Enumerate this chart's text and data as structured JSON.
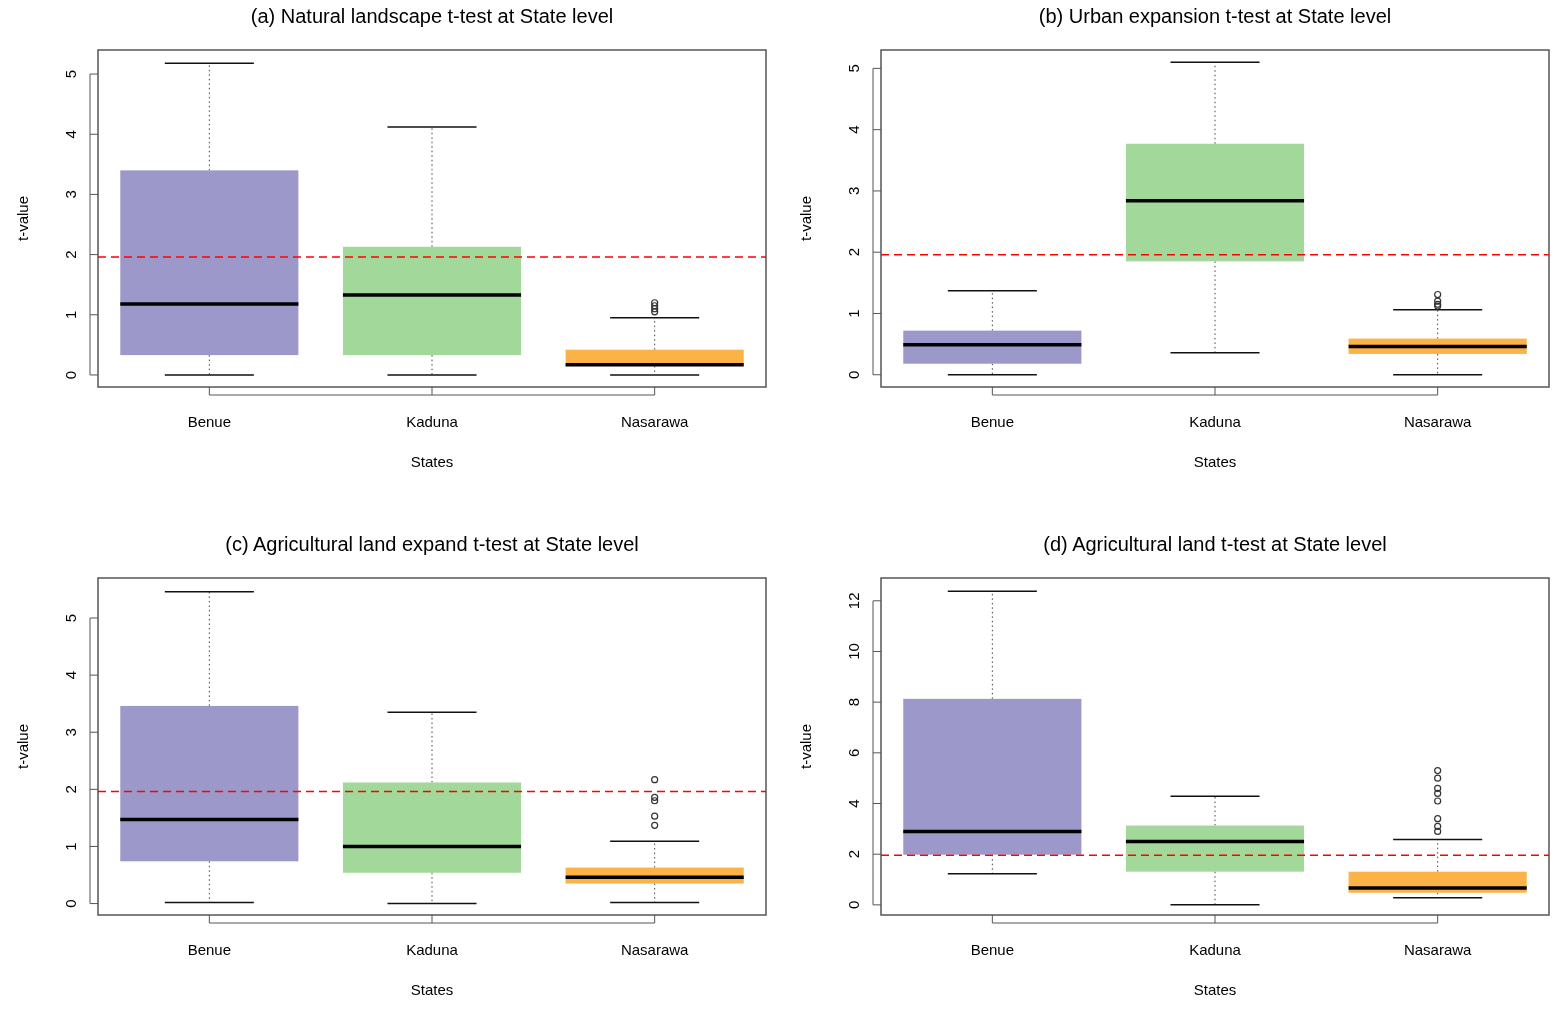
{
  "chart_data": [
    {
      "type": "box",
      "title": "(a) Natural landscape t-test at State level",
      "xlabel": "States",
      "ylabel": "t-value",
      "categories": [
        "Benue",
        "Kaduna",
        "Nasarawa"
      ],
      "colors": [
        "#9c98c9",
        "#a2d99a",
        "#fbb247"
      ],
      "ylim": [
        -0.2,
        5.4
      ],
      "yticks": [
        0,
        1,
        2,
        3,
        4,
        5
      ],
      "ref_lines": [
        {
          "axis": "y",
          "value": 1.96,
          "color": "#ff0000",
          "line_style": "dashed"
        }
      ],
      "boxes": [
        {
          "low": 0,
          "q1": 0.33,
          "median": 1.18,
          "q3": 3.4,
          "high": 5.18
        },
        {
          "low": 0,
          "q1": 0.33,
          "median": 1.33,
          "q3": 2.13,
          "high": 4.12
        },
        {
          "low": 0,
          "q1": 0.15,
          "median": 0.17,
          "q3": 0.42,
          "high": 0.95,
          "outliers": [
            1.05,
            1.1,
            1.15,
            1.2
          ]
        }
      ]
    },
    {
      "type": "box",
      "title": "(b) Urban expansion t-test at State level",
      "xlabel": "States",
      "ylabel": "t-value",
      "categories": [
        "Benue",
        "Kaduna",
        "Nasarawa"
      ],
      "colors": [
        "#9c98c9",
        "#a2d99a",
        "#fbb247"
      ],
      "ylim": [
        -0.2,
        5.3
      ],
      "yticks": [
        0,
        1,
        2,
        3,
        4,
        5
      ],
      "ref_lines": [
        {
          "axis": "y",
          "value": 1.96,
          "color": "#ff0000",
          "line_style": "dashed"
        }
      ],
      "boxes": [
        {
          "low": 0,
          "q1": 0.18,
          "median": 0.49,
          "q3": 0.72,
          "high": 1.37
        },
        {
          "low": 0.36,
          "q1": 1.85,
          "median": 2.84,
          "q3": 3.77,
          "high": 5.1
        },
        {
          "low": 0,
          "q1": 0.34,
          "median": 0.46,
          "q3": 0.59,
          "high": 1.06,
          "outliers": [
            1.12,
            1.15,
            1.2,
            1.31
          ]
        }
      ]
    },
    {
      "type": "box",
      "title": "(c) Agricultural land expand t-test at State level",
      "xlabel": "States",
      "ylabel": "t-value",
      "categories": [
        "Benue",
        "Kaduna",
        "Nasarawa"
      ],
      "colors": [
        "#9c98c9",
        "#a2d99a",
        "#fbb247"
      ],
      "ylim": [
        -0.2,
        5.7
      ],
      "yticks": [
        0,
        1,
        2,
        3,
        4,
        5
      ],
      "ref_lines": [
        {
          "axis": "y",
          "value": 1.96,
          "color": "#ff0000",
          "line_style": "dashed"
        }
      ],
      "boxes": [
        {
          "low": 0.02,
          "q1": 0.74,
          "median": 1.47,
          "q3": 3.46,
          "high": 5.46
        },
        {
          "low": 0,
          "q1": 0.54,
          "median": 1.0,
          "q3": 2.12,
          "high": 3.35
        },
        {
          "low": 0.02,
          "q1": 0.35,
          "median": 0.46,
          "q3": 0.63,
          "high": 1.09,
          "outliers": [
            1.37,
            1.53,
            1.8,
            1.86,
            2.17
          ]
        }
      ]
    },
    {
      "type": "box",
      "title": "(d) Agricultural land t-test at State level",
      "xlabel": "States",
      "ylabel": "t-value",
      "categories": [
        "Benue",
        "Kaduna",
        "Nasarawa"
      ],
      "colors": [
        "#9c98c9",
        "#a2d99a",
        "#fbb247"
      ],
      "ylim": [
        -0.4,
        12.9
      ],
      "yticks": [
        0,
        2,
        4,
        6,
        8,
        10,
        12
      ],
      "ref_lines": [
        {
          "axis": "y",
          "value": 1.96,
          "color": "#ff0000",
          "line_style": "dashed"
        }
      ],
      "boxes": [
        {
          "low": 1.23,
          "q1": 1.98,
          "median": 2.9,
          "q3": 8.13,
          "high": 12.38
        },
        {
          "low": 0,
          "q1": 1.31,
          "median": 2.5,
          "q3": 3.13,
          "high": 4.29
        },
        {
          "low": 0.28,
          "q1": 0.48,
          "median": 0.67,
          "q3": 1.31,
          "high": 2.58,
          "outliers": [
            2.9,
            3.1,
            3.4,
            4.1,
            4.4,
            4.6,
            5.0,
            5.3
          ]
        }
      ]
    }
  ]
}
